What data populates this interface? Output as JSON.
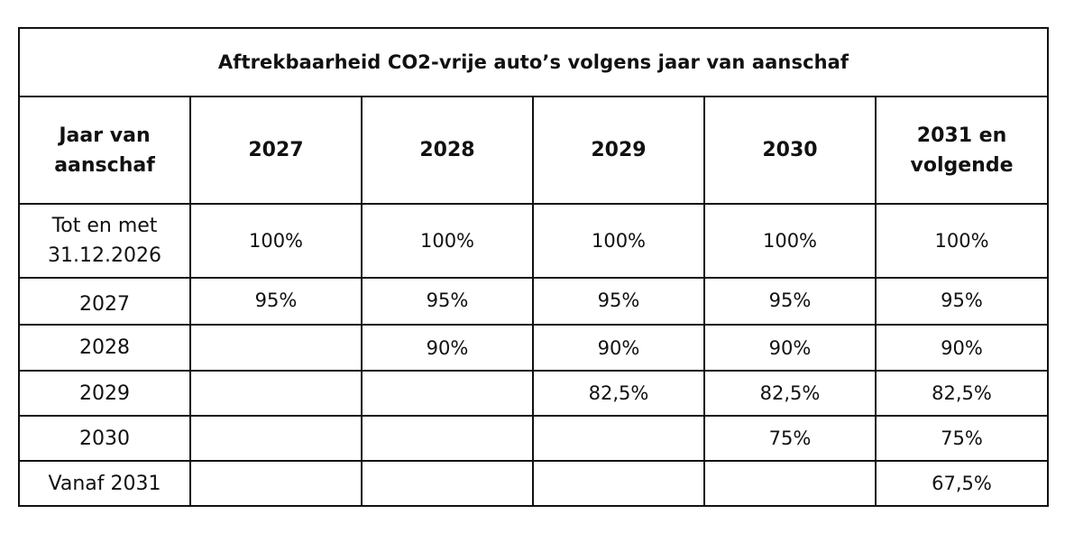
{
  "table": {
    "title": "Aftrekbaarheid CO2-vrije auto’s volgens jaar van aanschaf",
    "headers": [
      "Jaar van aanschaf",
      "2027",
      "2028",
      "2029",
      "2030",
      "2031 en volgende"
    ],
    "rows": [
      {
        "label": "Tot en met 31.12.2026",
        "values": [
          "100%",
          "100%",
          "100%",
          "100%",
          "100%"
        ]
      },
      {
        "label": "2027",
        "values": [
          "95%",
          "95%",
          "95%",
          "95%",
          "95%"
        ]
      },
      {
        "label": "2028",
        "values": [
          "",
          "90%",
          "90%",
          "90%",
          "90%"
        ]
      },
      {
        "label": "2029",
        "values": [
          "",
          "",
          "82,5%",
          "82,5%",
          "82,5%"
        ]
      },
      {
        "label": "2030",
        "values": [
          "",
          "",
          "",
          "75%",
          "75%"
        ]
      },
      {
        "label": "Vanaf 2031",
        "values": [
          "",
          "",
          "",
          "",
          "67,5%"
        ]
      }
    ]
  }
}
